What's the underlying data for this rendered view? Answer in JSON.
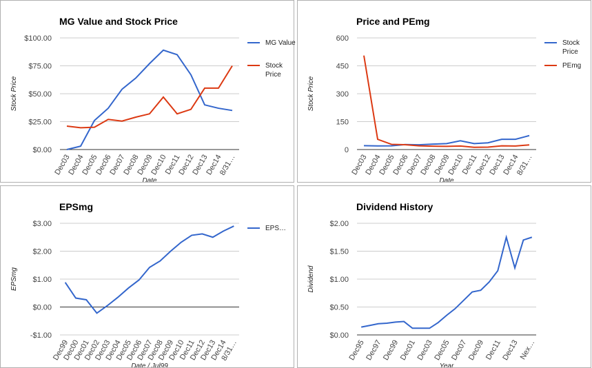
{
  "chart_data": [
    {
      "type": "line",
      "title": "MG Value and Stock Price",
      "x_label": "Date",
      "y_label": "Stock Price",
      "categories": [
        "Dec03",
        "Dec04",
        "Dec05",
        "Dec06",
        "Dec07",
        "Dec08",
        "Dec09",
        "Dec10",
        "Dec11",
        "Dec12",
        "Dec13",
        "Dec14",
        "8/31…"
      ],
      "series": [
        {
          "name": "MG Value",
          "color": "#3366cc",
          "values": [
            0,
            3,
            26,
            37,
            54,
            64,
            77,
            89,
            85,
            67,
            40,
            37,
            35
          ]
        },
        {
          "name": "Stock Price",
          "color": "#dc3912",
          "values": [
            21,
            19.5,
            20,
            27,
            25.5,
            29,
            32,
            47,
            32,
            36,
            55,
            55,
            75
          ]
        }
      ],
      "ylim": [
        0,
        100
      ],
      "yticks": [
        {
          "value": 0,
          "label": "$0.00"
        },
        {
          "value": 25,
          "label": "$25.00"
        },
        {
          "value": 50,
          "label": "$50.00"
        },
        {
          "value": 75,
          "label": "$75.00"
        },
        {
          "value": 100,
          "label": "$100.00"
        }
      ],
      "grid": true,
      "legend": "right"
    },
    {
      "type": "line",
      "title": "Price and PEmg",
      "x_label": "Date",
      "y_label": "Stock Price",
      "categories": [
        "Dec03",
        "Dec04",
        "Dec05",
        "Dec06",
        "Dec07",
        "Dec08",
        "Dec09",
        "Dec10",
        "Dec11",
        "Dec12",
        "Dec13",
        "Dec14",
        "8/31…"
      ],
      "series": [
        {
          "name": "Stock Price",
          "color": "#3366cc",
          "values": [
            21,
            19.5,
            20,
            27,
            25.5,
            29,
            32,
            47,
            32,
            36,
            55,
            55,
            75
          ]
        },
        {
          "name": "PEmg",
          "color": "#dc3912",
          "values": [
            505,
            55,
            28,
            26,
            20,
            18,
            17,
            19,
            12,
            13,
            20,
            19,
            25
          ]
        }
      ],
      "ylim": [
        0,
        600
      ],
      "yticks": [
        0,
        150,
        300,
        450,
        600
      ],
      "grid": true,
      "legend": "right"
    },
    {
      "type": "line",
      "title": "EPSmg",
      "x_label": "Date / Jul99",
      "y_label": "EPSmg",
      "categories": [
        "Dec99",
        "Dec00",
        "Dec01",
        "Dec02",
        "Dec03",
        "Dec04",
        "Dec05",
        "Dec06",
        "Dec07",
        "Dec08",
        "Dec09",
        "Dec10",
        "Dec11",
        "Dec12",
        "Dec13",
        "Dec14",
        "8/31…"
      ],
      "series": [
        {
          "name": "EPS…",
          "color": "#3366cc",
          "values": [
            0.88,
            0.32,
            0.26,
            -0.22,
            0.05,
            0.35,
            0.68,
            0.97,
            1.42,
            1.65,
            2.0,
            2.32,
            2.57,
            2.62,
            2.5,
            2.72,
            2.9
          ]
        }
      ],
      "ylim": [
        -1,
        3
      ],
      "yticks": [
        {
          "value": -1,
          "label": "-$1.00"
        },
        {
          "value": 0,
          "label": "$0.00"
        },
        {
          "value": 1,
          "label": "$1.00"
        },
        {
          "value": 2,
          "label": "$2.00"
        },
        {
          "value": 3,
          "label": "$3.00"
        }
      ],
      "grid": true,
      "legend": "right"
    },
    {
      "type": "line",
      "title": "Dividend History",
      "x_label": "Year",
      "y_label": "Dividend",
      "categories": [
        "Dec95",
        null,
        "Dec97",
        null,
        "Dec99",
        null,
        "Dec01",
        null,
        "Dec03",
        null,
        "Dec05",
        null,
        "Dec07",
        null,
        "Dec09",
        null,
        "Dec11",
        null,
        "Dec13",
        null,
        "Nex…"
      ],
      "color": "#3366cc",
      "values": [
        0.14,
        0.17,
        0.2,
        0.21,
        0.23,
        0.24,
        0.12,
        0.12,
        0.12,
        0.22,
        0.35,
        0.47,
        0.62,
        0.77,
        0.8,
        0.95,
        1.15,
        1.75,
        1.2,
        1.7,
        1.75
      ],
      "ylim": [
        0,
        2
      ],
      "yticks": [
        {
          "value": 0,
          "label": "$0.00"
        },
        {
          "value": 0.5,
          "label": "$0.50"
        },
        {
          "value": 1,
          "label": "$1.00"
        },
        {
          "value": 1.5,
          "label": "$1.50"
        },
        {
          "value": 2,
          "label": "$2.00"
        }
      ],
      "grid": true
    }
  ]
}
